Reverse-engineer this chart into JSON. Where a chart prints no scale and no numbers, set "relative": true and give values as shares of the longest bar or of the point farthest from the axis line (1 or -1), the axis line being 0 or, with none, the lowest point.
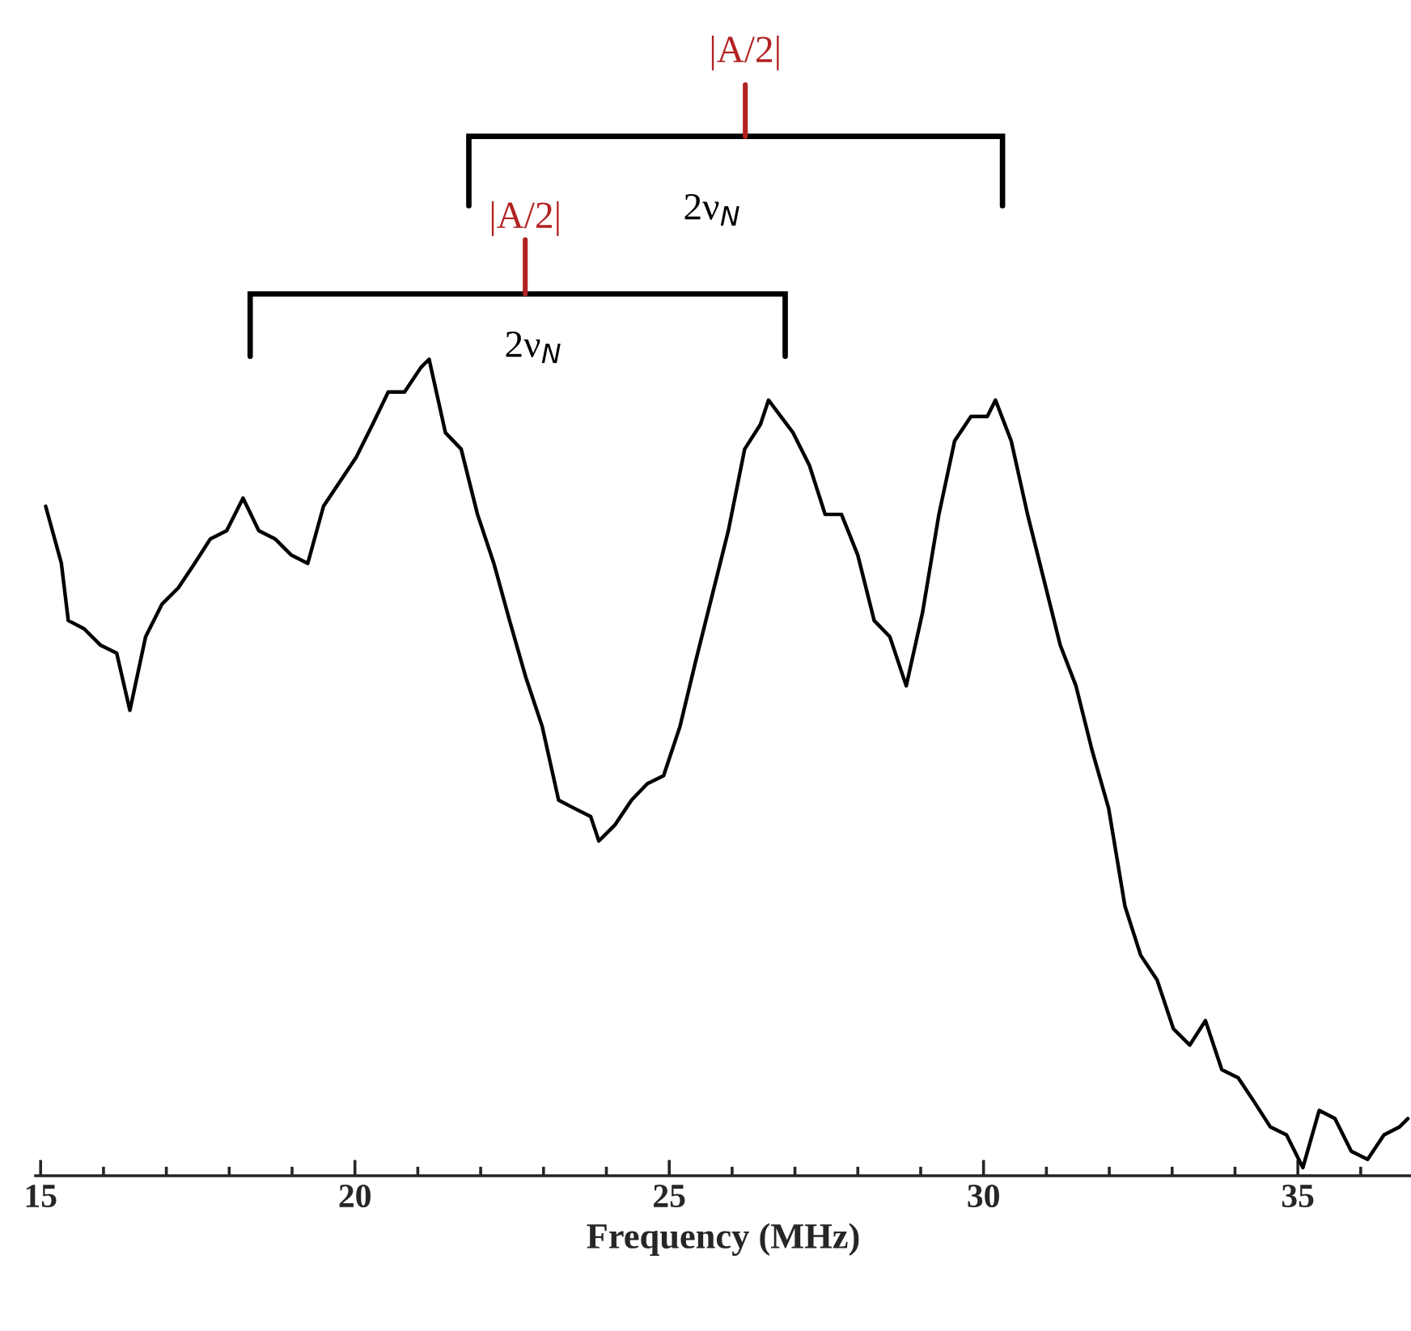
{
  "chart_data": {
    "type": "line",
    "relative": true,
    "xlabel": "Frequency (MHz)",
    "x": [
      15.08,
      15.33,
      15.44,
      15.69,
      15.95,
      16.21,
      16.42,
      16.67,
      16.93,
      17.19,
      17.45,
      17.7,
      17.96,
      18.22,
      18.47,
      18.73,
      18.99,
      19.25,
      19.5,
      19.76,
      20.02,
      20.28,
      20.53,
      20.79,
      21.05,
      21.18,
      21.44,
      21.69,
      21.95,
      22.21,
      22.46,
      22.72,
      22.98,
      23.24,
      23.49,
      23.75,
      23.88,
      24.14,
      24.4,
      24.65,
      24.91,
      25.17,
      25.42,
      25.68,
      25.94,
      26.2,
      26.45,
      26.58,
      26.97,
      27.23,
      27.48,
      27.74,
      28.0,
      28.26,
      28.51,
      28.77,
      29.03,
      29.29,
      29.54,
      29.8,
      30.06,
      30.19,
      30.44,
      30.7,
      30.96,
      31.22,
      31.47,
      31.73,
      31.99,
      32.25,
      32.5,
      32.76,
      33.02,
      33.28,
      33.53,
      33.79,
      34.05,
      34.31,
      34.56,
      34.82,
      35.08,
      35.34,
      35.59,
      35.85,
      36.11,
      36.37,
      36.62,
      36.75
    ],
    "series": [
      {
        "color": "#000000",
        "values": [
          0.82,
          0.75,
          0.68,
          0.67,
          0.65,
          0.64,
          0.57,
          0.66,
          0.7,
          0.72,
          0.75,
          0.78,
          0.79,
          0.83,
          0.79,
          0.78,
          0.76,
          0.75,
          0.82,
          0.85,
          0.88,
          0.92,
          0.96,
          0.96,
          0.99,
          1.0,
          0.91,
          0.89,
          0.81,
          0.75,
          0.68,
          0.61,
          0.55,
          0.46,
          0.45,
          0.44,
          0.41,
          0.43,
          0.46,
          0.48,
          0.49,
          0.55,
          0.63,
          0.71,
          0.79,
          0.89,
          0.92,
          0.95,
          0.91,
          0.87,
          0.81,
          0.81,
          0.76,
          0.68,
          0.66,
          0.6,
          0.69,
          0.81,
          0.9,
          0.93,
          0.93,
          0.95,
          0.9,
          0.81,
          0.73,
          0.65,
          0.6,
          0.52,
          0.45,
          0.33,
          0.27,
          0.24,
          0.18,
          0.16,
          0.19,
          0.13,
          0.12,
          0.09,
          0.06,
          0.05,
          0.01,
          0.08,
          0.07,
          0.03,
          0.02,
          0.05,
          0.06,
          0.07
        ]
      }
    ],
    "xlim": [
      14.92,
      36.8
    ],
    "xticks": [
      15,
      {
        "value": 16,
        "label": null
      },
      {
        "value": 17,
        "label": null
      },
      {
        "value": 18,
        "label": null
      },
      {
        "value": 19,
        "label": null
      },
      20,
      {
        "value": 21,
        "label": null
      },
      {
        "value": 22,
        "label": null
      },
      {
        "value": 23,
        "label": null
      },
      {
        "value": 24,
        "label": null
      },
      25,
      {
        "value": 26,
        "label": null
      },
      {
        "value": 27,
        "label": null
      },
      {
        "value": 28,
        "label": null
      },
      {
        "value": 29,
        "label": null
      },
      30,
      {
        "value": 31,
        "label": null
      },
      {
        "value": 32,
        "label": null
      },
      {
        "value": 33,
        "label": null
      },
      {
        "value": 34,
        "label": null
      },
      35,
      {
        "value": 36,
        "label": null
      }
    ],
    "tick_labels": "x",
    "grid": false,
    "legend": false,
    "marker": "none",
    "line_style": "solid",
    "annotations": [
      "|A/2|",
      "2ν$_{N}$",
      "|A/2|",
      "2ν$_{N}$"
    ]
  }
}
